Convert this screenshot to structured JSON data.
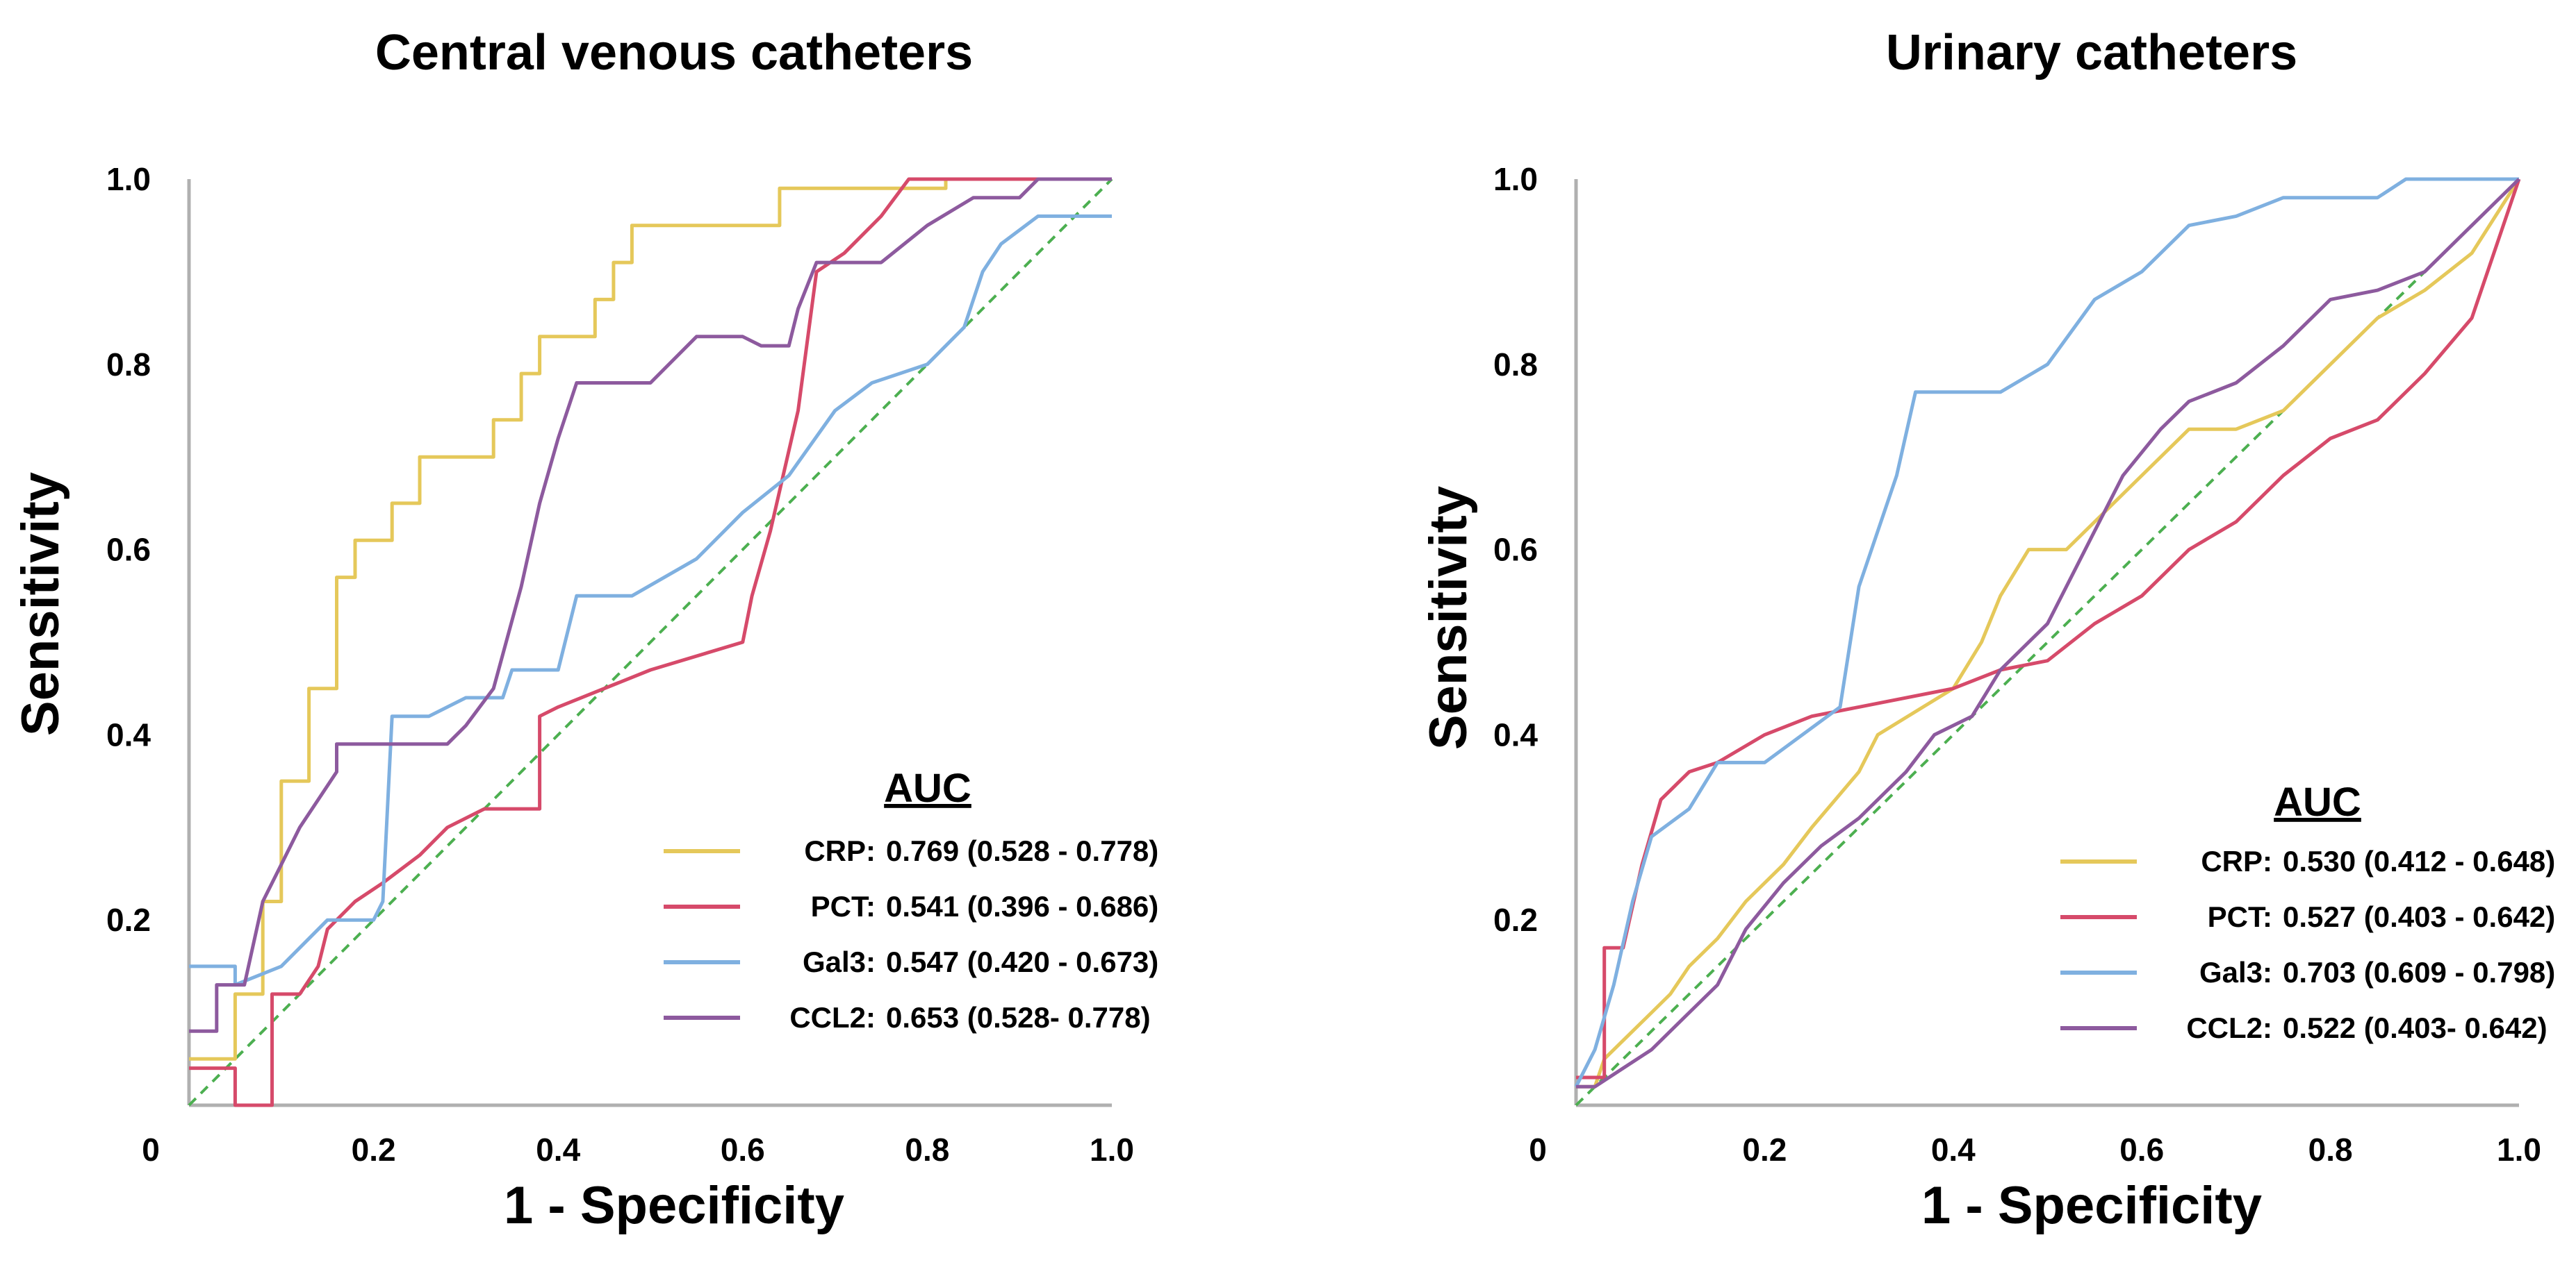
{
  "chart_data": [
    {
      "type": "line",
      "title": "Central venous catheters",
      "xlabel": "1 - Specificity",
      "ylabel": "Sensitivity",
      "xlim": [
        0,
        1
      ],
      "ylim": [
        0,
        1
      ],
      "x_ticks": [
        "0",
        "0.2",
        "0.4",
        "0.6",
        "0.8",
        "1.0"
      ],
      "y_ticks": [
        "0.2",
        "0.4",
        "0.6",
        "0.8",
        "1.0"
      ],
      "legend": {
        "title": "AUC",
        "placement": "lower-right"
      },
      "reference_line": {
        "points": [
          [
            0,
            0
          ],
          [
            1,
            1
          ]
        ],
        "color": "#4caf50"
      },
      "series": [
        {
          "name": "CRP",
          "legend_name": "CRP:",
          "auc_text": "0.769 (0.528 - 0.778)",
          "color": "#e5c85a",
          "points": [
            [
              0,
              0.05
            ],
            [
              0.05,
              0.05
            ],
            [
              0.05,
              0.12
            ],
            [
              0.08,
              0.12
            ],
            [
              0.08,
              0.22
            ],
            [
              0.1,
              0.22
            ],
            [
              0.1,
              0.35
            ],
            [
              0.13,
              0.35
            ],
            [
              0.13,
              0.45
            ],
            [
              0.16,
              0.45
            ],
            [
              0.16,
              0.57
            ],
            [
              0.18,
              0.57
            ],
            [
              0.18,
              0.61
            ],
            [
              0.22,
              0.61
            ],
            [
              0.22,
              0.65
            ],
            [
              0.25,
              0.65
            ],
            [
              0.25,
              0.7
            ],
            [
              0.33,
              0.7
            ],
            [
              0.33,
              0.74
            ],
            [
              0.36,
              0.74
            ],
            [
              0.36,
              0.79
            ],
            [
              0.38,
              0.79
            ],
            [
              0.38,
              0.83
            ],
            [
              0.44,
              0.83
            ],
            [
              0.44,
              0.87
            ],
            [
              0.46,
              0.87
            ],
            [
              0.46,
              0.91
            ],
            [
              0.48,
              0.91
            ],
            [
              0.48,
              0.95
            ],
            [
              0.64,
              0.95
            ],
            [
              0.64,
              0.99
            ],
            [
              0.82,
              0.99
            ],
            [
              0.82,
              1.0
            ],
            [
              1,
              1.0
            ]
          ]
        },
        {
          "name": "PCT",
          "legend_name": "PCT:",
          "auc_text": "0.541 (0.396 - 0.686)",
          "color": "#d64a6a",
          "points": [
            [
              0,
              0.04
            ],
            [
              0.05,
              0.04
            ],
            [
              0.05,
              0
            ],
            [
              0.09,
              0
            ],
            [
              0.09,
              0.12
            ],
            [
              0.12,
              0.12
            ],
            [
              0.14,
              0.15
            ],
            [
              0.15,
              0.19
            ],
            [
              0.18,
              0.22
            ],
            [
              0.21,
              0.24
            ],
            [
              0.25,
              0.27
            ],
            [
              0.28,
              0.3
            ],
            [
              0.32,
              0.32
            ],
            [
              0.38,
              0.32
            ],
            [
              0.38,
              0.42
            ],
            [
              0.4,
              0.43
            ],
            [
              0.5,
              0.47
            ],
            [
              0.6,
              0.5
            ],
            [
              0.61,
              0.55
            ],
            [
              0.63,
              0.62
            ],
            [
              0.66,
              0.75
            ],
            [
              0.68,
              0.9
            ],
            [
              0.71,
              0.92
            ],
            [
              0.75,
              0.96
            ],
            [
              0.78,
              1.0
            ],
            [
              1,
              1.0
            ]
          ]
        },
        {
          "name": "Gal3",
          "legend_name": "Gal3:",
          "auc_text": "0.547 (0.420 - 0.673)",
          "color": "#7fb0e0",
          "points": [
            [
              0,
              0.15
            ],
            [
              0.05,
              0.15
            ],
            [
              0.05,
              0.13
            ],
            [
              0.1,
              0.15
            ],
            [
              0.15,
              0.2
            ],
            [
              0.2,
              0.2
            ],
            [
              0.21,
              0.22
            ],
            [
              0.22,
              0.42
            ],
            [
              0.26,
              0.42
            ],
            [
              0.3,
              0.44
            ],
            [
              0.34,
              0.44
            ],
            [
              0.35,
              0.47
            ],
            [
              0.4,
              0.47
            ],
            [
              0.42,
              0.55
            ],
            [
              0.48,
              0.55
            ],
            [
              0.55,
              0.59
            ],
            [
              0.6,
              0.64
            ],
            [
              0.65,
              0.68
            ],
            [
              0.7,
              0.75
            ],
            [
              0.74,
              0.78
            ],
            [
              0.8,
              0.8
            ],
            [
              0.84,
              0.84
            ],
            [
              0.86,
              0.9
            ],
            [
              0.88,
              0.93
            ],
            [
              0.92,
              0.96
            ],
            [
              1,
              0.96
            ]
          ]
        },
        {
          "name": "CCL2",
          "legend_name": "CCL2:",
          "auc_text": "0.653 (0.528- 0.778)",
          "color": "#8d5a9e",
          "points": [
            [
              0,
              0.08
            ],
            [
              0.03,
              0.08
            ],
            [
              0.03,
              0.13
            ],
            [
              0.06,
              0.13
            ],
            [
              0.08,
              0.22
            ],
            [
              0.1,
              0.26
            ],
            [
              0.12,
              0.3
            ],
            [
              0.16,
              0.36
            ],
            [
              0.16,
              0.39
            ],
            [
              0.28,
              0.39
            ],
            [
              0.3,
              0.41
            ],
            [
              0.33,
              0.45
            ],
            [
              0.36,
              0.56
            ],
            [
              0.38,
              0.65
            ],
            [
              0.4,
              0.72
            ],
            [
              0.42,
              0.78
            ],
            [
              0.5,
              0.78
            ],
            [
              0.55,
              0.83
            ],
            [
              0.6,
              0.83
            ],
            [
              0.62,
              0.82
            ],
            [
              0.65,
              0.82
            ],
            [
              0.66,
              0.86
            ],
            [
              0.68,
              0.91
            ],
            [
              0.75,
              0.91
            ],
            [
              0.8,
              0.95
            ],
            [
              0.85,
              0.98
            ],
            [
              0.9,
              0.98
            ],
            [
              0.92,
              1.0
            ],
            [
              1,
              1.0
            ]
          ]
        }
      ]
    },
    {
      "type": "line",
      "title": "Urinary catheters",
      "xlabel": "1 - Specificity",
      "ylabel": "Sensitivity",
      "xlim": [
        0,
        1
      ],
      "ylim": [
        0,
        1
      ],
      "x_ticks": [
        "0",
        "0.2",
        "0.4",
        "0.6",
        "0.8",
        "1.0"
      ],
      "y_ticks": [
        "0.2",
        "0.4",
        "0.6",
        "0.8",
        "1.0"
      ],
      "legend": {
        "title": "AUC",
        "placement": "lower-right"
      },
      "reference_line": {
        "points": [
          [
            0,
            0
          ],
          [
            1,
            1
          ]
        ],
        "color": "#4caf50"
      },
      "series": [
        {
          "name": "CRP",
          "legend_name": "CRP:",
          "auc_text": "0.530 (0.412 - 0.648)",
          "color": "#e5c85a",
          "points": [
            [
              0,
              0.02
            ],
            [
              0.02,
              0.02
            ],
            [
              0.03,
              0.05
            ],
            [
              0.06,
              0.08
            ],
            [
              0.08,
              0.1
            ],
            [
              0.1,
              0.12
            ],
            [
              0.12,
              0.15
            ],
            [
              0.15,
              0.18
            ],
            [
              0.18,
              0.22
            ],
            [
              0.22,
              0.26
            ],
            [
              0.25,
              0.3
            ],
            [
              0.3,
              0.36
            ],
            [
              0.32,
              0.4
            ],
            [
              0.4,
              0.45
            ],
            [
              0.43,
              0.5
            ],
            [
              0.45,
              0.55
            ],
            [
              0.48,
              0.6
            ],
            [
              0.52,
              0.6
            ],
            [
              0.55,
              0.63
            ],
            [
              0.6,
              0.68
            ],
            [
              0.65,
              0.73
            ],
            [
              0.7,
              0.73
            ],
            [
              0.75,
              0.75
            ],
            [
              0.8,
              0.8
            ],
            [
              0.85,
              0.85
            ],
            [
              0.9,
              0.88
            ],
            [
              0.95,
              0.92
            ],
            [
              1,
              1.0
            ]
          ]
        },
        {
          "name": "PCT",
          "legend_name": "PCT:",
          "auc_text": "0.527 (0.403 - 0.642)",
          "color": "#d64a6a",
          "points": [
            [
              0,
              0.03
            ],
            [
              0.03,
              0.03
            ],
            [
              0.03,
              0.17
            ],
            [
              0.05,
              0.17
            ],
            [
              0.07,
              0.26
            ],
            [
              0.09,
              0.33
            ],
            [
              0.12,
              0.36
            ],
            [
              0.15,
              0.37
            ],
            [
              0.2,
              0.4
            ],
            [
              0.25,
              0.42
            ],
            [
              0.3,
              0.43
            ],
            [
              0.4,
              0.45
            ],
            [
              0.45,
              0.47
            ],
            [
              0.5,
              0.48
            ],
            [
              0.55,
              0.52
            ],
            [
              0.6,
              0.55
            ],
            [
              0.65,
              0.6
            ],
            [
              0.7,
              0.63
            ],
            [
              0.75,
              0.68
            ],
            [
              0.8,
              0.72
            ],
            [
              0.85,
              0.74
            ],
            [
              0.9,
              0.79
            ],
            [
              0.95,
              0.85
            ],
            [
              1,
              1.0
            ]
          ]
        },
        {
          "name": "Gal3",
          "legend_name": "Gal3:",
          "auc_text": "0.703 (0.609 - 0.798)",
          "color": "#7fb0e0",
          "points": [
            [
              0,
              0.02
            ],
            [
              0.02,
              0.06
            ],
            [
              0.04,
              0.13
            ],
            [
              0.06,
              0.22
            ],
            [
              0.08,
              0.29
            ],
            [
              0.12,
              0.32
            ],
            [
              0.15,
              0.37
            ],
            [
              0.2,
              0.37
            ],
            [
              0.28,
              0.43
            ],
            [
              0.3,
              0.56
            ],
            [
              0.34,
              0.68
            ],
            [
              0.36,
              0.77
            ],
            [
              0.45,
              0.77
            ],
            [
              0.5,
              0.8
            ],
            [
              0.55,
              0.87
            ],
            [
              0.6,
              0.9
            ],
            [
              0.65,
              0.95
            ],
            [
              0.7,
              0.96
            ],
            [
              0.75,
              0.98
            ],
            [
              0.85,
              0.98
            ],
            [
              0.88,
              1.0
            ],
            [
              1,
              1.0
            ]
          ]
        },
        {
          "name": "CCL2",
          "legend_name": "CCL2:",
          "auc_text": "0.522 (0.403- 0.642)",
          "color": "#8d5a9e",
          "points": [
            [
              0,
              0.02
            ],
            [
              0.02,
              0.02
            ],
            [
              0.05,
              0.04
            ],
            [
              0.08,
              0.06
            ],
            [
              0.12,
              0.1
            ],
            [
              0.15,
              0.13
            ],
            [
              0.18,
              0.19
            ],
            [
              0.22,
              0.24
            ],
            [
              0.26,
              0.28
            ],
            [
              0.3,
              0.31
            ],
            [
              0.35,
              0.36
            ],
            [
              0.38,
              0.4
            ],
            [
              0.42,
              0.42
            ],
            [
              0.45,
              0.47
            ],
            [
              0.5,
              0.52
            ],
            [
              0.52,
              0.56
            ],
            [
              0.55,
              0.62
            ],
            [
              0.58,
              0.68
            ],
            [
              0.62,
              0.73
            ],
            [
              0.65,
              0.76
            ],
            [
              0.7,
              0.78
            ],
            [
              0.75,
              0.82
            ],
            [
              0.8,
              0.87
            ],
            [
              0.85,
              0.88
            ],
            [
              0.9,
              0.9
            ],
            [
              0.95,
              0.95
            ],
            [
              1,
              1.0
            ]
          ]
        }
      ]
    }
  ]
}
